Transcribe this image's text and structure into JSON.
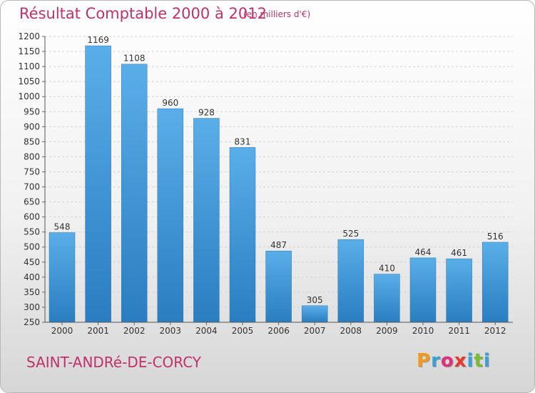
{
  "header": {
    "title": "Résultat Comptable 2000 à 2012",
    "subtitle": "(en milliers d'€)"
  },
  "footer": {
    "commune": "SAINT-ANDRé-DE-CORCY",
    "logo_letters": [
      "P",
      "r",
      "o",
      "x",
      "i",
      "t",
      "i"
    ],
    "logo_colors": [
      "#f39a1c",
      "#3aa0d8",
      "#e0307a",
      "#e23a2b",
      "#3aa0d8",
      "#7cbd2f",
      "#3aa0d8"
    ]
  },
  "chart_data": {
    "type": "bar",
    "categories": [
      "2000",
      "2001",
      "2002",
      "2003",
      "2004",
      "2005",
      "2006",
      "2007",
      "2008",
      "2009",
      "2010",
      "2011",
      "2012"
    ],
    "values": [
      548,
      1169,
      1108,
      960,
      928,
      831,
      487,
      305,
      525,
      410,
      464,
      461,
      516
    ],
    "data_labels": [
      "548",
      "1169",
      "1108",
      "960",
      "928",
      "831",
      "487",
      "305",
      "525",
      "410",
      "464",
      "461",
      "516"
    ],
    "ylim": [
      250,
      1200
    ],
    "yticks": [
      250,
      300,
      350,
      400,
      450,
      500,
      550,
      600,
      650,
      700,
      750,
      800,
      850,
      900,
      950,
      1000,
      1050,
      1100,
      1150,
      1200
    ],
    "grid": true,
    "bar_color": "#3d95d6"
  }
}
